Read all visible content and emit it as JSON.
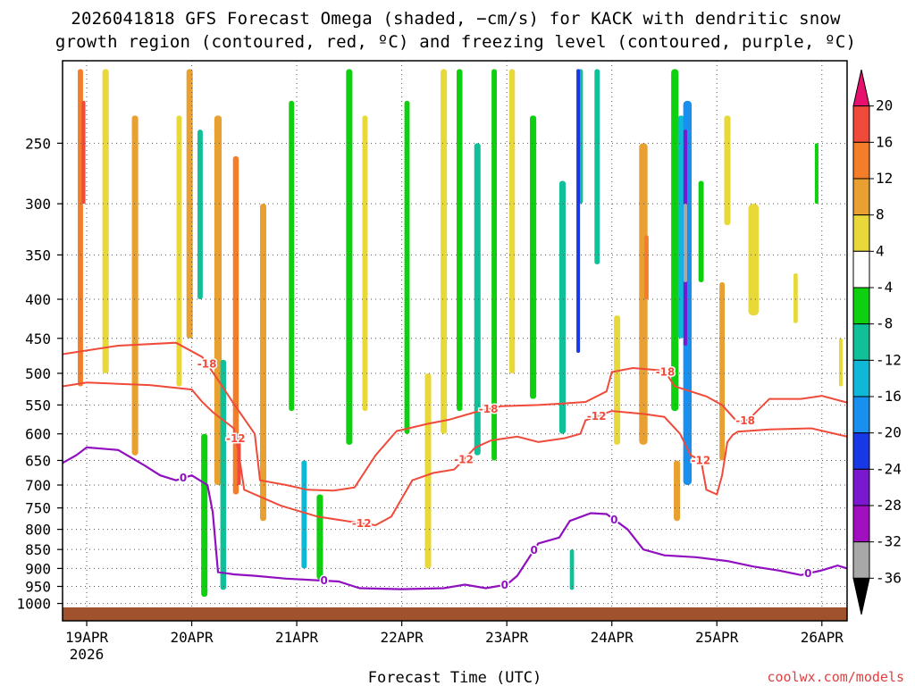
{
  "chart_data": {
    "type": "heatmap",
    "title_line1": "2026041818 GFS Forecast Omega (shaded, −cm/s) for KACK with dendritic snow",
    "title_line2": "growth region (contoured, red, ºC) and freezing level (contoured, purple, ºC)",
    "xlabel": "Forecast Time (UTC)",
    "ylabel": "",
    "credit": "coolwx.com/models",
    "x_start_label": "19APR",
    "x_start_year": "2026",
    "x_ticks": [
      "19APR",
      "20APR",
      "21APR",
      "22APR",
      "23APR",
      "24APR",
      "25APR",
      "26APR"
    ],
    "x_range_days": [
      -0.23,
      7.24
    ],
    "y_ticks": [
      250,
      300,
      350,
      400,
      450,
      500,
      550,
      600,
      650,
      700,
      750,
      800,
      850,
      900,
      950,
      1000
    ],
    "y_range_hpa": [
      195,
      1012
    ],
    "colorbar": {
      "labels": [
        "20",
        "16",
        "12",
        "8",
        "4",
        "-4",
        "-8",
        "-12",
        "-16",
        "-20",
        "-24",
        "-28",
        "-32",
        "-36"
      ],
      "bins": [
        {
          "range": "> 20",
          "color": "#e8106e"
        },
        {
          "range": "16 to 20",
          "color": "#f04a3a"
        },
        {
          "range": "12 to 16",
          "color": "#f47d2a"
        },
        {
          "range": "8 to 12",
          "color": "#e8a030"
        },
        {
          "range": "4 to 8",
          "color": "#e8d83a"
        },
        {
          "range": "-4 to 4",
          "color": "#ffffff"
        },
        {
          "range": "-8 to -4",
          "color": "#0ed00e"
        },
        {
          "range": "-12 to -8",
          "color": "#10c098"
        },
        {
          "range": "-16 to -12",
          "color": "#10b8d8"
        },
        {
          "range": "-20 to -16",
          "color": "#1890f0"
        },
        {
          "range": "-24 to -20",
          "color": "#1838e8"
        },
        {
          "range": "-28 to -24",
          "color": "#7a18d0"
        },
        {
          "range": "-32 to -28",
          "color": "#a010c0"
        },
        {
          "range": "-36 to -32",
          "color": "#a8a8a8"
        },
        {
          "range": "< -36",
          "color": "#000000"
        }
      ]
    },
    "contours": {
      "dgz_color": "#f04a3a",
      "freezing_color": "#9010c0",
      "dgz_labels": [
        "-18",
        "-12",
        "-12",
        "-18",
        "-12",
        "-18",
        "-12",
        "-18",
        "-12"
      ],
      "freezing_labels": [
        "0",
        "0",
        "0",
        "0",
        "0",
        "0"
      ],
      "minus18_line": [
        [
          -0.23,
          472
        ],
        [
          0.3,
          460
        ],
        [
          0.85,
          456
        ],
        [
          1.1,
          476
        ],
        [
          1.25,
          510
        ],
        [
          1.4,
          548
        ],
        [
          1.6,
          600
        ],
        [
          1.65,
          690
        ],
        [
          1.9,
          700
        ],
        [
          2.1,
          710
        ],
        [
          2.35,
          712
        ],
        [
          2.55,
          705
        ],
        [
          2.75,
          640
        ],
        [
          2.95,
          595
        ],
        [
          3.25,
          582
        ],
        [
          3.45,
          575
        ],
        [
          3.7,
          562
        ],
        [
          3.95,
          552
        ],
        [
          4.3,
          550
        ],
        [
          4.5,
          548
        ],
        [
          4.75,
          545
        ],
        [
          4.95,
          528
        ],
        [
          5.0,
          498
        ],
        [
          5.2,
          492
        ],
        [
          5.5,
          496
        ],
        [
          5.6,
          520
        ],
        [
          5.9,
          536
        ],
        [
          6.05,
          550
        ],
        [
          6.2,
          580
        ],
        [
          6.3,
          575
        ],
        [
          6.5,
          540
        ],
        [
          6.8,
          540
        ],
        [
          7.0,
          535
        ],
        [
          7.24,
          546
        ]
      ],
      "minus12_line": [
        [
          -0.23,
          520
        ],
        [
          0.0,
          514
        ],
        [
          0.3,
          516
        ],
        [
          0.6,
          518
        ],
        [
          1.0,
          525
        ],
        [
          1.1,
          545
        ],
        [
          1.2,
          562
        ],
        [
          1.4,
          590
        ],
        [
          1.45,
          640
        ],
        [
          1.5,
          710
        ],
        [
          1.7,
          730
        ],
        [
          1.85,
          745
        ],
        [
          2.2,
          770
        ],
        [
          2.6,
          785
        ],
        [
          2.75,
          790
        ],
        [
          2.9,
          770
        ],
        [
          3.1,
          690
        ],
        [
          3.3,
          675
        ],
        [
          3.5,
          668
        ],
        [
          3.7,
          625
        ],
        [
          3.85,
          612
        ],
        [
          4.1,
          605
        ],
        [
          4.3,
          615
        ],
        [
          4.55,
          608
        ],
        [
          4.7,
          600
        ],
        [
          4.75,
          576
        ],
        [
          5.0,
          560
        ],
        [
          5.3,
          565
        ],
        [
          5.5,
          570
        ],
        [
          5.55,
          580
        ],
        [
          5.65,
          600
        ],
        [
          5.75,
          640
        ],
        [
          5.85,
          650
        ],
        [
          5.9,
          710
        ],
        [
          6.0,
          720
        ],
        [
          6.05,
          680
        ],
        [
          6.1,
          615
        ],
        [
          6.15,
          602
        ],
        [
          6.2,
          596
        ],
        [
          6.5,
          592
        ],
        [
          6.9,
          590
        ],
        [
          7.24,
          605
        ]
      ],
      "freezing_line": [
        [
          -0.23,
          655
        ],
        [
          -0.1,
          640
        ],
        [
          0.0,
          625
        ],
        [
          0.3,
          630
        ],
        [
          0.55,
          660
        ],
        [
          0.7,
          680
        ],
        [
          0.85,
          690
        ],
        [
          1.0,
          680
        ],
        [
          1.15,
          700
        ],
        [
          1.2,
          760
        ],
        [
          1.25,
          910
        ],
        [
          1.4,
          916
        ],
        [
          1.6,
          920
        ],
        [
          1.9,
          928
        ],
        [
          2.15,
          932
        ],
        [
          2.4,
          936
        ],
        [
          2.6,
          955
        ],
        [
          3.0,
          958
        ],
        [
          3.4,
          955
        ],
        [
          3.6,
          945
        ],
        [
          3.8,
          955
        ],
        [
          4.0,
          945
        ],
        [
          4.1,
          920
        ],
        [
          4.3,
          835
        ],
        [
          4.5,
          820
        ],
        [
          4.6,
          780
        ],
        [
          4.8,
          762
        ],
        [
          4.95,
          764
        ],
        [
          5.15,
          800
        ],
        [
          5.3,
          850
        ],
        [
          5.5,
          865
        ],
        [
          5.8,
          870
        ],
        [
          6.1,
          880
        ],
        [
          6.35,
          895
        ],
        [
          6.6,
          906
        ],
        [
          6.8,
          918
        ],
        [
          7.0,
          905
        ],
        [
          7.15,
          892
        ],
        [
          7.24,
          900
        ]
      ]
    },
    "omega_features": [
      {
        "day": -0.06,
        "p": [
          200,
          520
        ],
        "w": 0.05,
        "v": 14
      },
      {
        "day": -0.03,
        "p": [
          220,
          300
        ],
        "w": 0.035,
        "v": 18
      },
      {
        "day": 0.18,
        "p": [
          200,
          500
        ],
        "w": 0.06,
        "v": 6
      },
      {
        "day": 0.46,
        "p": [
          230,
          640
        ],
        "w": 0.06,
        "v": 8
      },
      {
        "day": 0.88,
        "p": [
          230,
          520
        ],
        "w": 0.05,
        "v": 6
      },
      {
        "day": 0.98,
        "p": [
          200,
          450
        ],
        "w": 0.06,
        "v": 10
      },
      {
        "day": 1.08,
        "p": [
          240,
          400
        ],
        "w": 0.05,
        "v": -8
      },
      {
        "day": 1.25,
        "p": [
          230,
          700
        ],
        "w": 0.07,
        "v": 10
      },
      {
        "day": 1.42,
        "p": [
          260,
          720
        ],
        "w": 0.055,
        "v": 12
      },
      {
        "day": 1.45,
        "p": [
          600,
          700
        ],
        "w": 0.03,
        "v": 16
      },
      {
        "day": 1.68,
        "p": [
          300,
          780
        ],
        "w": 0.06,
        "v": 8
      },
      {
        "day": 1.12,
        "p": [
          600,
          980
        ],
        "w": 0.06,
        "v": -6
      },
      {
        "day": 1.3,
        "p": [
          480,
          960
        ],
        "w": 0.055,
        "v": -10
      },
      {
        "day": 1.95,
        "p": [
          220,
          560
        ],
        "w": 0.05,
        "v": -6
      },
      {
        "day": 2.07,
        "p": [
          650,
          900
        ],
        "w": 0.05,
        "v": -12
      },
      {
        "day": 2.22,
        "p": [
          720,
          930
        ],
        "w": 0.06,
        "v": -6
      },
      {
        "day": 2.5,
        "p": [
          200,
          620
        ],
        "w": 0.06,
        "v": -6
      },
      {
        "day": 2.65,
        "p": [
          230,
          560
        ],
        "w": 0.05,
        "v": 6
      },
      {
        "day": 3.05,
        "p": [
          220,
          600
        ],
        "w": 0.05,
        "v": -6
      },
      {
        "day": 3.25,
        "p": [
          500,
          900
        ],
        "w": 0.06,
        "v": 6
      },
      {
        "day": 3.4,
        "p": [
          200,
          600
        ],
        "w": 0.06,
        "v": 6
      },
      {
        "day": 3.55,
        "p": [
          200,
          560
        ],
        "w": 0.055,
        "v": -6
      },
      {
        "day": 3.72,
        "p": [
          250,
          640
        ],
        "w": 0.06,
        "v": -8
      },
      {
        "day": 3.88,
        "p": [
          200,
          650
        ],
        "w": 0.05,
        "v": -6
      },
      {
        "day": 4.05,
        "p": [
          200,
          500
        ],
        "w": 0.055,
        "v": 6
      },
      {
        "day": 4.25,
        "p": [
          230,
          540
        ],
        "w": 0.06,
        "v": -6
      },
      {
        "day": 4.53,
        "p": [
          280,
          600
        ],
        "w": 0.06,
        "v": -8
      },
      {
        "day": 4.7,
        "p": [
          200,
          300
        ],
        "w": 0.05,
        "v": -10
      },
      {
        "day": 4.68,
        "p": [
          200,
          470
        ],
        "w": 0.03,
        "v": -22
      },
      {
        "day": 4.86,
        "p": [
          200,
          360
        ],
        "w": 0.05,
        "v": -8
      },
      {
        "day": 4.62,
        "p": [
          850,
          960
        ],
        "w": 0.04,
        "v": -10
      },
      {
        "day": 5.05,
        "p": [
          420,
          620
        ],
        "w": 0.06,
        "v": 6
      },
      {
        "day": 5.3,
        "p": [
          250,
          620
        ],
        "w": 0.08,
        "v": 8
      },
      {
        "day": 5.33,
        "p": [
          330,
          400
        ],
        "w": 0.04,
        "v": 14
      },
      {
        "day": 5.6,
        "p": [
          200,
          560
        ],
        "w": 0.07,
        "v": -6
      },
      {
        "day": 5.66,
        "p": [
          230,
          450
        ],
        "w": 0.06,
        "v": -12
      },
      {
        "day": 5.7,
        "p": [
          240,
          460
        ],
        "w": 0.035,
        "v": -26
      },
      {
        "day": 5.7,
        "p": [
          300,
          380
        ],
        "w": 0.015,
        "v": -34
      },
      {
        "day": 5.72,
        "p": [
          220,
          700
        ],
        "w": 0.08,
        "v": -16
      },
      {
        "day": 5.62,
        "p": [
          650,
          780
        ],
        "w": 0.06,
        "v": 8
      },
      {
        "day": 5.85,
        "p": [
          280,
          380
        ],
        "w": 0.05,
        "v": -6
      },
      {
        "day": 6.05,
        "p": [
          380,
          650
        ],
        "w": 0.05,
        "v": 8
      },
      {
        "day": 6.1,
        "p": [
          230,
          320
        ],
        "w": 0.06,
        "v": 6
      },
      {
        "day": 6.35,
        "p": [
          300,
          420
        ],
        "w": 0.1,
        "v": 6
      },
      {
        "day": 6.75,
        "p": [
          370,
          430
        ],
        "w": 0.04,
        "v": 6
      },
      {
        "day": 6.95,
        "p": [
          250,
          300
        ],
        "w": 0.03,
        "v": -6
      },
      {
        "day": 7.18,
        "p": [
          450,
          520
        ],
        "w": 0.03,
        "v": 6
      }
    ]
  }
}
